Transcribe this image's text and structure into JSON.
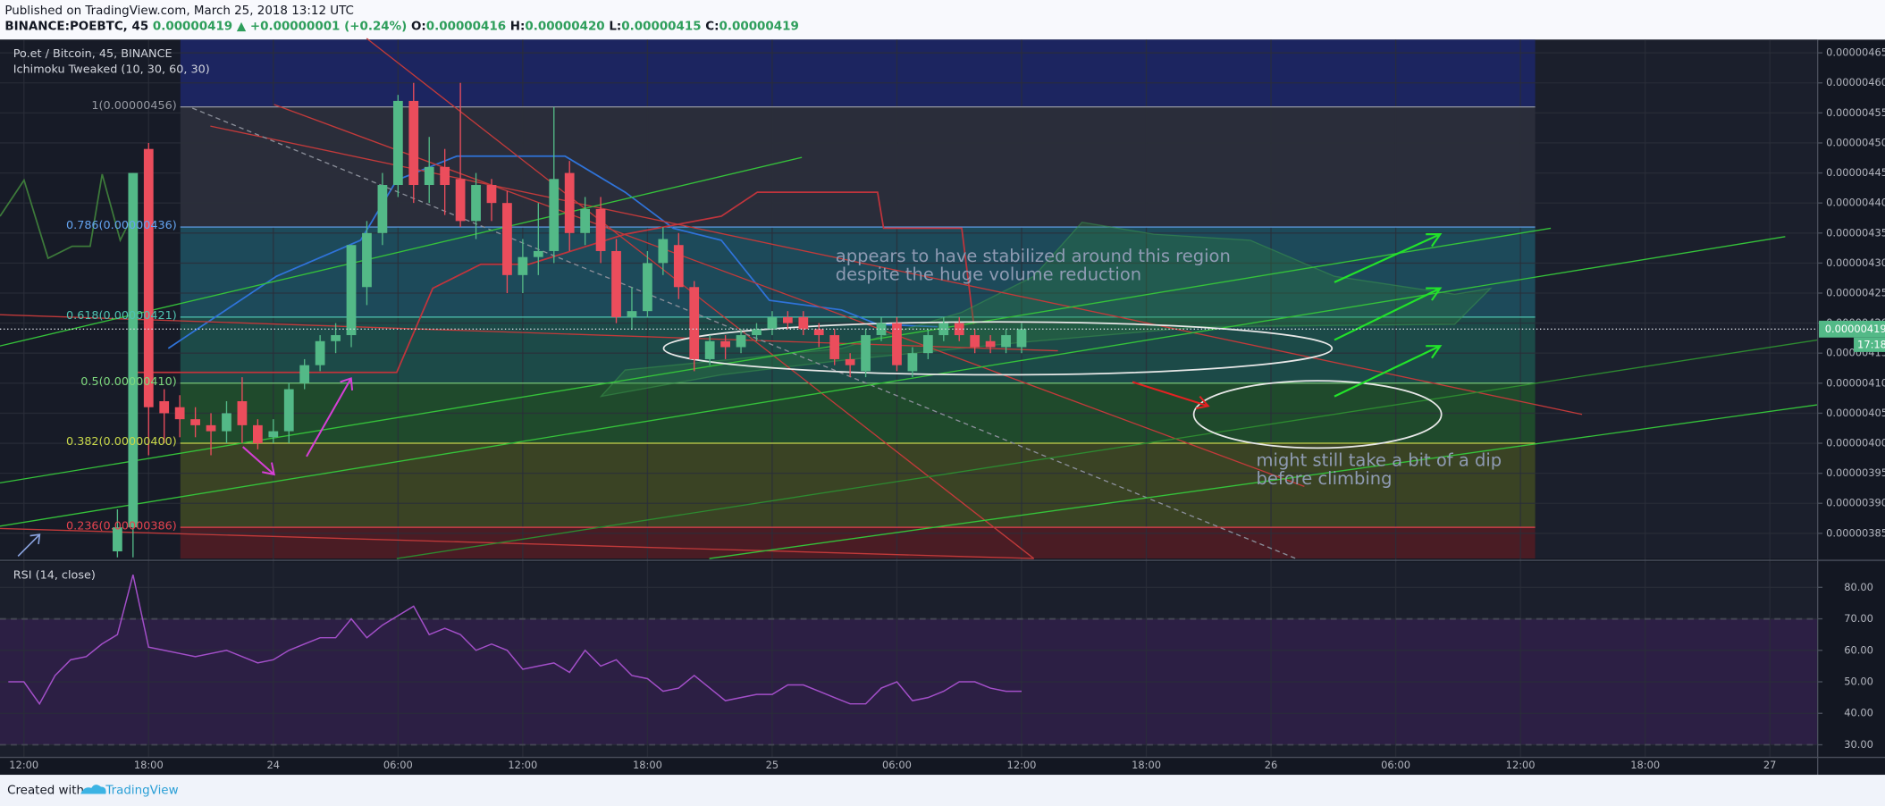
{
  "header": {
    "published": "Published on TradingView.com, March 25, 2018 13:12 UTC",
    "symbol": "BINANCE:POEBTC, 45",
    "price": "0.00000419",
    "change": "▲ +0.00000001 (+0.24%)",
    "o_label": "O:",
    "o": "0.00000416",
    "h_label": "H:",
    "h": "0.00000420",
    "l_label": "L:",
    "l": "0.00000415",
    "c_label": "C:",
    "c": "0.00000419"
  },
  "footer": {
    "created": "Created with",
    "brand": "TradingView"
  },
  "chart_data": {
    "type": "candlestick",
    "title": "Po.et / Bitcoin, 45, BINANCE",
    "indicator": "Ichimoku Tweaked (10, 30, 60, 30)",
    "up_color": "#53b987",
    "down_color": "#eb4d5c",
    "grid": true,
    "xlim": [
      10.85,
      98.3
    ],
    "xticks": [
      {
        "value": 12,
        "label": "12:00"
      },
      {
        "value": 18,
        "label": "18:00"
      },
      {
        "value": 24,
        "label": "24"
      },
      {
        "value": 30,
        "label": "06:00"
      },
      {
        "value": 36,
        "label": "12:00"
      },
      {
        "value": 42,
        "label": "18:00"
      },
      {
        "value": 48,
        "label": "25"
      },
      {
        "value": 54,
        "label": "06:00"
      },
      {
        "value": 60,
        "label": "12:00"
      },
      {
        "value": 66,
        "label": "18:00"
      },
      {
        "value": 72,
        "label": "26"
      },
      {
        "value": 78,
        "label": "06:00"
      },
      {
        "value": 84,
        "label": "12:00"
      },
      {
        "value": 90,
        "label": "18:00"
      },
      {
        "value": 96,
        "label": "27"
      }
    ],
    "ylim": [
      3.808e-06,
      4.672e-06
    ],
    "yticks": [
      {
        "value": 4.65e-06,
        "label": "0.00000465"
      },
      {
        "value": 4.6e-06,
        "label": "0.00000460"
      },
      {
        "value": 4.55e-06,
        "label": "0.00000455"
      },
      {
        "value": 4.5e-06,
        "label": "0.00000450"
      },
      {
        "value": 4.45e-06,
        "label": "0.00000445"
      },
      {
        "value": 4.4e-06,
        "label": "0.00000440"
      },
      {
        "value": 4.35e-06,
        "label": "0.00000435"
      },
      {
        "value": 4.3e-06,
        "label": "0.00000430"
      },
      {
        "value": 4.25e-06,
        "label": "0.00000425"
      },
      {
        "value": 4.2e-06,
        "label": "0.00000420"
      },
      {
        "value": 4.15e-06,
        "label": "0.00000415"
      },
      {
        "value": 4.1e-06,
        "label": "0.00000410"
      },
      {
        "value": 4.05e-06,
        "label": "0.00000405"
      },
      {
        "value": 4e-06,
        "label": "0.00000400"
      },
      {
        "value": 3.95e-06,
        "label": "0.00000395"
      },
      {
        "value": 3.9e-06,
        "label": "0.00000390"
      },
      {
        "value": 3.85e-06,
        "label": "0.00000385"
      }
    ],
    "x": [
      16.5,
      17.25,
      18,
      18.75,
      19.5,
      20.25,
      21,
      21.75,
      22.5,
      23.25,
      24,
      24.75,
      25.5,
      26.25,
      27,
      27.75,
      28.5,
      29.25,
      30,
      30.75,
      31.5,
      32.25,
      33,
      33.75,
      34.5,
      35.25,
      36,
      36.75,
      37.5,
      38.25,
      39,
      39.75,
      40.5,
      41.25,
      42,
      42.75,
      43.5,
      44.25,
      45,
      45.75,
      46.5,
      47.25,
      48,
      48.75,
      49.5,
      50.25,
      51,
      51.75,
      52.5,
      53.25,
      54,
      54.75,
      55.5,
      56.25,
      57,
      57.75,
      58.5,
      59.25,
      60
    ],
    "open": [
      3.82e-06,
      3.86e-06,
      4.49e-06,
      4.07e-06,
      4.06e-06,
      4.04e-06,
      4.03e-06,
      4.02e-06,
      4.07e-06,
      4.03e-06,
      4.01e-06,
      4.02e-06,
      4.1e-06,
      4.13e-06,
      4.17e-06,
      4.18e-06,
      4.26e-06,
      4.35e-06,
      4.43e-06,
      4.57e-06,
      4.43e-06,
      4.46e-06,
      4.44e-06,
      4.37e-06,
      4.43e-06,
      4.4e-06,
      4.28e-06,
      4.31e-06,
      4.32e-06,
      4.45e-06,
      4.35e-06,
      4.39e-06,
      4.32e-06,
      4.21e-06,
      4.22e-06,
      4.3e-06,
      4.33e-06,
      4.26e-06,
      4.14e-06,
      4.17e-06,
      4.16e-06,
      4.18e-06,
      4.19e-06,
      4.21e-06,
      4.21e-06,
      4.19e-06,
      4.18e-06,
      4.14e-06,
      4.12e-06,
      4.18e-06,
      4.2e-06,
      4.12e-06,
      4.15e-06,
      4.18e-06,
      4.2e-06,
      4.18e-06,
      4.17e-06,
      4.16e-06,
      4.16e-06
    ],
    "high": [
      3.89e-06,
      4.45e-06,
      4.5e-06,
      4.09e-06,
      4.08e-06,
      4.06e-06,
      4.05e-06,
      4.07e-06,
      4.11e-06,
      4.04e-06,
      4.04e-06,
      4.1e-06,
      4.14e-06,
      4.18e-06,
      4.2e-06,
      4.33e-06,
      4.37e-06,
      4.45e-06,
      4.58e-06,
      4.6e-06,
      4.51e-06,
      4.49e-06,
      4.6e-06,
      4.45e-06,
      4.44e-06,
      4.42e-06,
      4.34e-06,
      4.4e-06,
      4.56e-06,
      4.47e-06,
      4.41e-06,
      4.41e-06,
      4.34e-06,
      4.26e-06,
      4.32e-06,
      4.36e-06,
      4.35e-06,
      4.27e-06,
      4.18e-06,
      4.18e-06,
      4.19e-06,
      4.2e-06,
      4.22e-06,
      4.22e-06,
      4.22e-06,
      4.2e-06,
      4.19e-06,
      4.15e-06,
      4.19e-06,
      4.21e-06,
      4.21e-06,
      4.16e-06,
      4.19e-06,
      4.21e-06,
      4.21e-06,
      4.19e-06,
      4.18e-06,
      4.19e-06,
      4.2e-06
    ],
    "low": [
      3.81e-06,
      3.81e-06,
      3.98e-06,
      4e-06,
      4.01e-06,
      4.01e-06,
      3.98e-06,
      4e-06,
      4e-06,
      3.99e-06,
      4e-06,
      4e-06,
      4.09e-06,
      4.12e-06,
      4.15e-06,
      4.16e-06,
      4.23e-06,
      4.33e-06,
      4.41e-06,
      4.4e-06,
      4.4e-06,
      4.38e-06,
      4.36e-06,
      4.34e-06,
      4.37e-06,
      4.25e-06,
      4.25e-06,
      4.28e-06,
      4.3e-06,
      4.32e-06,
      4.33e-06,
      4.3e-06,
      4.2e-06,
      4.19e-06,
      4.21e-06,
      4.28e-06,
      4.24e-06,
      4.12e-06,
      4.13e-06,
      4.14e-06,
      4.15e-06,
      4.17e-06,
      4.18e-06,
      4.19e-06,
      4.18e-06,
      4.16e-06,
      4.13e-06,
      4.11e-06,
      4.11e-06,
      4.17e-06,
      4.12e-06,
      4.11e-06,
      4.14e-06,
      4.17e-06,
      4.17e-06,
      4.15e-06,
      4.15e-06,
      4.15e-06,
      4.15e-06
    ],
    "close": [
      3.86e-06,
      4.45e-06,
      4.06e-06,
      4.05e-06,
      4.04e-06,
      4.03e-06,
      4.02e-06,
      4.05e-06,
      4.03e-06,
      4e-06,
      4.02e-06,
      4.09e-06,
      4.13e-06,
      4.17e-06,
      4.18e-06,
      4.33e-06,
      4.35e-06,
      4.43e-06,
      4.57e-06,
      4.43e-06,
      4.46e-06,
      4.43e-06,
      4.37e-06,
      4.43e-06,
      4.4e-06,
      4.28e-06,
      4.31e-06,
      4.32e-06,
      4.44e-06,
      4.35e-06,
      4.39e-06,
      4.32e-06,
      4.21e-06,
      4.22e-06,
      4.3e-06,
      4.34e-06,
      4.26e-06,
      4.14e-06,
      4.17e-06,
      4.16e-06,
      4.18e-06,
      4.19e-06,
      4.21e-06,
      4.2e-06,
      4.19e-06,
      4.18e-06,
      4.14e-06,
      4.13e-06,
      4.18e-06,
      4.2e-06,
      4.13e-06,
      4.15e-06,
      4.18e-06,
      4.2e-06,
      4.18e-06,
      4.16e-06,
      4.16e-06,
      4.18e-06,
      4.19e-06
    ],
    "fib_levels": [
      {
        "label": "1(0.00000456)",
        "value": 4.56e-06,
        "color": "#9598a1"
      },
      {
        "label": "0.786(0.00000436)",
        "value": 4.36e-06,
        "color": "#64a4f0"
      },
      {
        "label": "0.618(0.00000421)",
        "value": 4.21e-06,
        "color": "#4fc3b0"
      },
      {
        "label": "0.5(0.00000410)",
        "value": 4.1e-06,
        "color": "#7ed97e"
      },
      {
        "label": "0.382(0.00000400)",
        "value": 4e-06,
        "color": "#c8d84a"
      },
      {
        "label": "0.236(0.00000386)",
        "value": 3.86e-06,
        "color": "#e5434f"
      }
    ],
    "last_price": 4.19e-06,
    "countdown": "17:18",
    "annotations": [
      "appears to have stabilized around this region",
      "despite the huge volume reduction",
      "might still take a bit of a dip",
      "before climbing"
    ],
    "rsi": {
      "title": "RSI (14, close)",
      "color": "#a34fc9",
      "x": [
        11.25,
        12,
        12.75,
        13.5,
        14.25,
        15,
        15.75,
        16.5,
        17.25,
        18,
        18.75,
        19.5,
        20.25,
        21,
        21.75,
        22.5,
        23.25,
        24,
        24.75,
        25.5,
        26.25,
        27,
        27.75,
        28.5,
        29.25,
        30,
        30.75,
        31.5,
        32.25,
        33,
        33.75,
        34.5,
        35.25,
        36,
        36.75,
        37.5,
        38.25,
        39,
        39.75,
        40.5,
        41.25,
        42,
        42.75,
        43.5,
        44.25,
        45,
        45.75,
        46.5,
        47.25,
        48,
        48.75,
        49.5,
        50.25,
        51,
        51.75,
        52.5,
        53.25,
        54,
        54.75,
        55.5,
        56.25,
        57,
        57.75,
        58.5,
        59.25,
        60
      ],
      "values": [
        50,
        50,
        43,
        52,
        57,
        58,
        62,
        65,
        84,
        61,
        60,
        59,
        58,
        59,
        60,
        58,
        56,
        57,
        60,
        62,
        64,
        64,
        70,
        64,
        68,
        71,
        74,
        65,
        67,
        65,
        60,
        62,
        60,
        54,
        55,
        56,
        53,
        60,
        55,
        57,
        52,
        51,
        47,
        48,
        52,
        48,
        44,
        45,
        46,
        46,
        49,
        49,
        47,
        45,
        43,
        43,
        48,
        50,
        44,
        45,
        47,
        50,
        50,
        48,
        47,
        47
      ],
      "ylim": [
        26.2,
        88
      ],
      "bands": [
        30,
        70
      ],
      "yticks": [
        {
          "value": 80,
          "label": "80.00"
        },
        {
          "value": 70,
          "label": "70.00"
        },
        {
          "value": 60,
          "label": "60.00"
        },
        {
          "value": 50,
          "label": "50.00"
        },
        {
          "value": 40,
          "label": "40.00"
        },
        {
          "value": 30,
          "label": "30.00"
        }
      ]
    }
  }
}
